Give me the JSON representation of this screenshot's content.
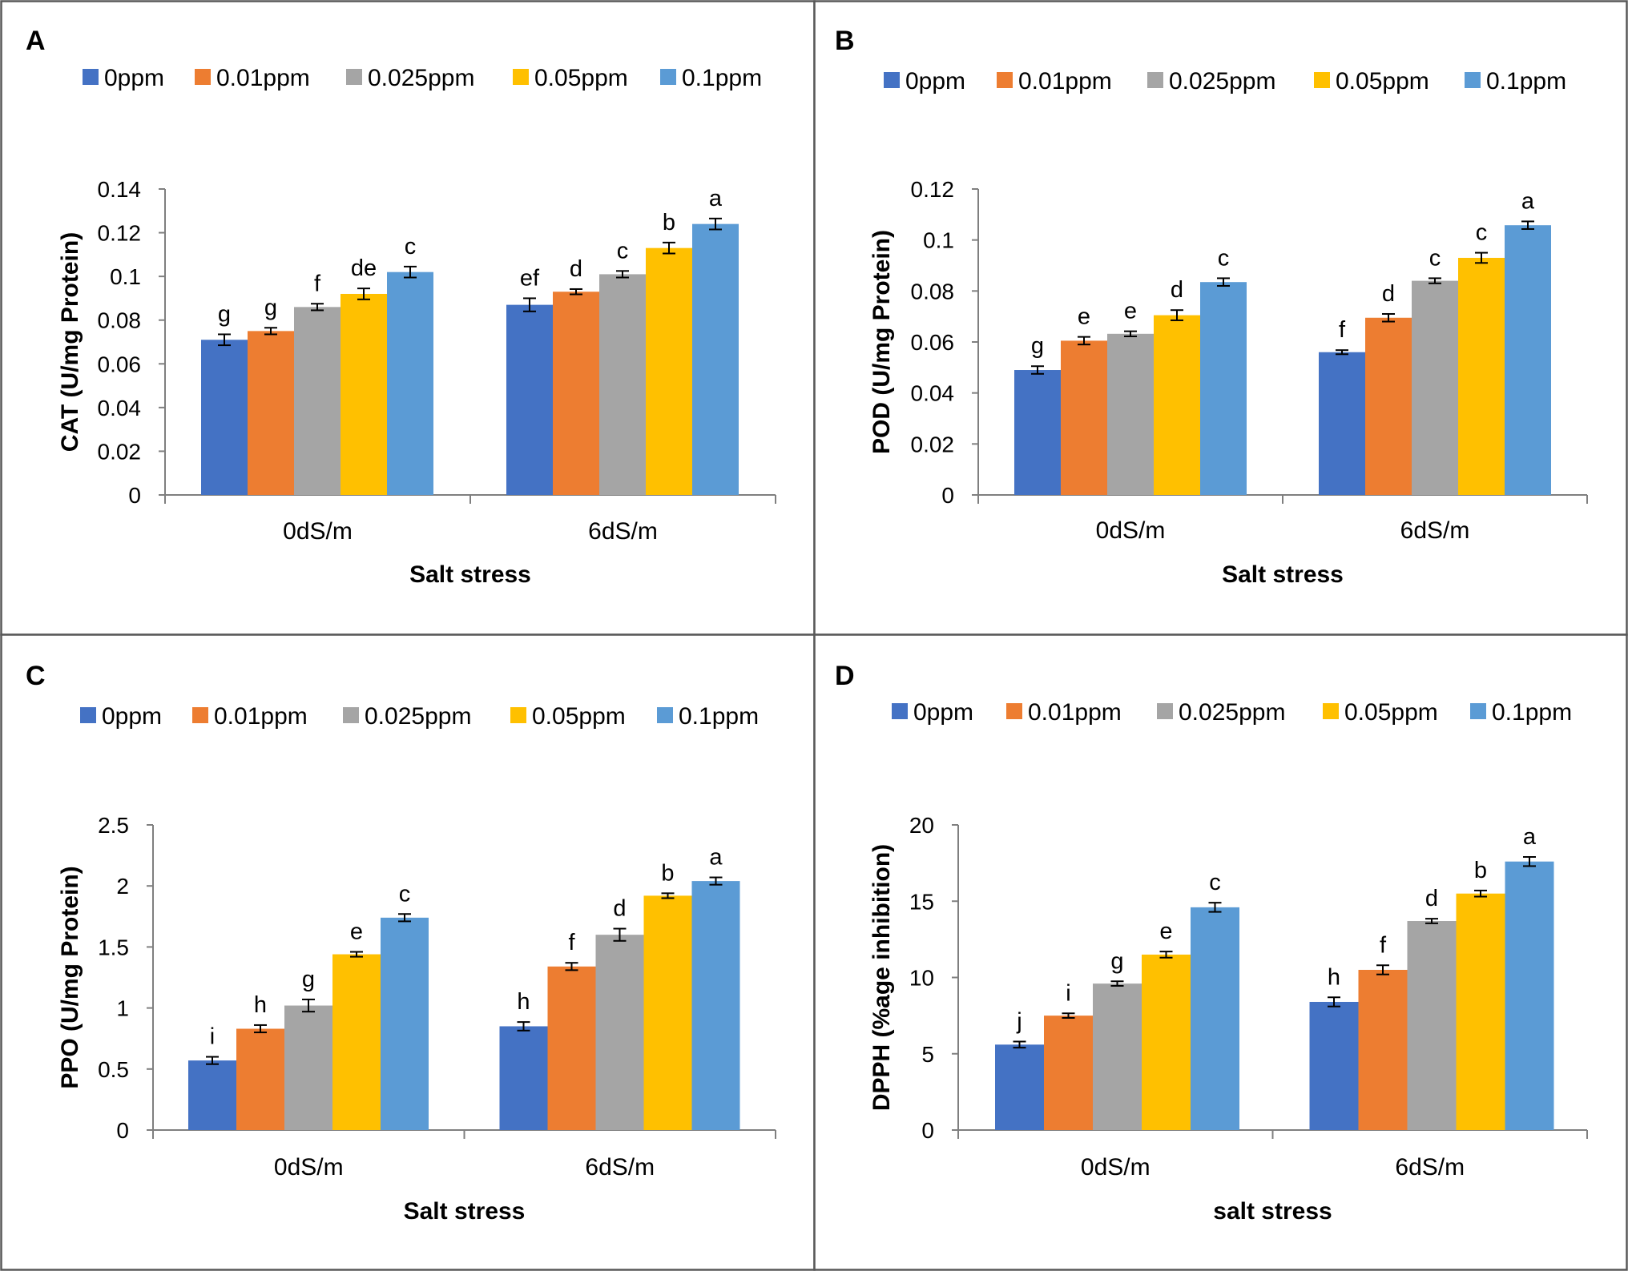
{
  "figure": {
    "series_colors": [
      "#4472C4",
      "#ED7D31",
      "#A5A5A5",
      "#FFC000",
      "#5B9BD5"
    ]
  },
  "chart_data": [
    {
      "panel": "A",
      "type": "bar",
      "categories": [
        "0dS/m",
        "6dS/m"
      ],
      "series": [
        {
          "name": "0ppm",
          "values": [
            0.071,
            0.087
          ],
          "errors": [
            0.0025,
            0.003
          ],
          "letters": [
            "g",
            "ef"
          ]
        },
        {
          "name": "0.01ppm",
          "values": [
            0.075,
            0.093
          ],
          "errors": [
            0.0015,
            0.0012
          ],
          "letters": [
            "g",
            "d"
          ]
        },
        {
          "name": "0.025ppm",
          "values": [
            0.086,
            0.101
          ],
          "errors": [
            0.0015,
            0.0015
          ],
          "letters": [
            "f",
            "c"
          ]
        },
        {
          "name": "0.05ppm",
          "values": [
            0.092,
            0.113
          ],
          "errors": [
            0.0025,
            0.0025
          ],
          "letters": [
            "de",
            "b"
          ]
        },
        {
          "name": "0.1ppm",
          "values": [
            0.102,
            0.124
          ],
          "errors": [
            0.0025,
            0.0025
          ],
          "letters": [
            "c",
            "a"
          ]
        }
      ],
      "ylim": [
        0,
        0.14
      ],
      "yticks": [
        "0",
        "0.02",
        "0.04",
        "0.06",
        "0.08",
        "0.1",
        "0.12",
        "0.14"
      ],
      "ylabel": "CAT (U/mg Protein)",
      "xlabel": "Salt stress"
    },
    {
      "panel": "B",
      "type": "bar",
      "categories": [
        "0dS/m",
        "6dS/m"
      ],
      "series": [
        {
          "name": "0ppm",
          "values": [
            0.049,
            0.056
          ],
          "errors": [
            0.0015,
            0.0008
          ],
          "letters": [
            "g",
            "f"
          ]
        },
        {
          "name": "0.01ppm",
          "values": [
            0.0605,
            0.0695
          ],
          "errors": [
            0.0015,
            0.0015
          ],
          "letters": [
            "e",
            "d"
          ]
        },
        {
          "name": "0.025ppm",
          "values": [
            0.0632,
            0.084
          ],
          "errors": [
            0.001,
            0.001
          ],
          "letters": [
            "e",
            "c"
          ]
        },
        {
          "name": "0.05ppm",
          "values": [
            0.0705,
            0.093
          ],
          "errors": [
            0.002,
            0.002
          ],
          "letters": [
            "d",
            "c"
          ]
        },
        {
          "name": "0.1ppm",
          "values": [
            0.0835,
            0.1058
          ],
          "errors": [
            0.0015,
            0.0015
          ],
          "letters": [
            "c",
            "a"
          ]
        }
      ],
      "ylim": [
        0,
        0.12
      ],
      "yticks": [
        "0",
        "0.02",
        "0.04",
        "0.06",
        "0.08",
        "0.1",
        "0.12"
      ],
      "ylabel": "POD (U/mg Protein)",
      "xlabel": "Salt stress"
    },
    {
      "panel": "C",
      "type": "bar",
      "categories": [
        "0dS/m",
        "6dS/m"
      ],
      "series": [
        {
          "name": "0ppm",
          "values": [
            0.57,
            0.85
          ],
          "errors": [
            0.03,
            0.035
          ],
          "letters": [
            "i",
            "h"
          ]
        },
        {
          "name": "0.01ppm",
          "values": [
            0.83,
            1.34
          ],
          "errors": [
            0.03,
            0.03
          ],
          "letters": [
            "h",
            "f"
          ]
        },
        {
          "name": "0.025ppm",
          "values": [
            1.02,
            1.6
          ],
          "errors": [
            0.05,
            0.05
          ],
          "letters": [
            "g",
            "d"
          ]
        },
        {
          "name": "0.05ppm",
          "values": [
            1.44,
            1.92
          ],
          "errors": [
            0.02,
            0.02
          ],
          "letters": [
            "e",
            "b"
          ]
        },
        {
          "name": "0.1ppm",
          "values": [
            1.74,
            2.04
          ],
          "errors": [
            0.03,
            0.03
          ],
          "letters": [
            "c",
            "a"
          ]
        }
      ],
      "ylim": [
        0,
        2.5
      ],
      "yticks": [
        "0",
        "0.5",
        "1",
        "1.5",
        "2",
        "2.5"
      ],
      "ylabel": "PPO (U/mg Protein)",
      "xlabel": "Salt stress"
    },
    {
      "panel": "D",
      "type": "bar",
      "categories": [
        "0dS/m",
        "6dS/m"
      ],
      "series": [
        {
          "name": "0ppm",
          "values": [
            5.6,
            8.4
          ],
          "errors": [
            0.2,
            0.3
          ],
          "letters": [
            "j",
            "h"
          ]
        },
        {
          "name": "0.01ppm",
          "values": [
            7.5,
            10.5
          ],
          "errors": [
            0.15,
            0.3
          ],
          "letters": [
            "i",
            "f"
          ]
        },
        {
          "name": "0.025ppm",
          "values": [
            9.6,
            13.7
          ],
          "errors": [
            0.15,
            0.15
          ],
          "letters": [
            "g",
            "d"
          ]
        },
        {
          "name": "0.05ppm",
          "values": [
            11.5,
            15.5
          ],
          "errors": [
            0.2,
            0.2
          ],
          "letters": [
            "e",
            "b"
          ]
        },
        {
          "name": "0.1ppm",
          "values": [
            14.6,
            17.6
          ],
          "errors": [
            0.3,
            0.3
          ],
          "letters": [
            "c",
            "a"
          ]
        }
      ],
      "ylim": [
        0,
        20
      ],
      "yticks": [
        "0",
        "5",
        "10",
        "15",
        "20"
      ],
      "ylabel": "DPPH (%age inhibition)",
      "xlabel": "salt stress"
    }
  ]
}
